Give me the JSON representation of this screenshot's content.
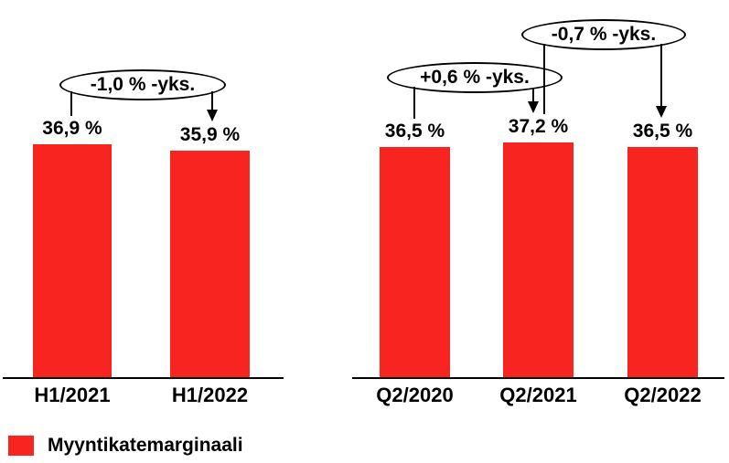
{
  "colors": {
    "bar": "#F82420",
    "axis": "#000000",
    "text": "#000000",
    "callout_border": "#000000",
    "callout_fill": "#ffffff",
    "background": "#ffffff"
  },
  "legend": {
    "label": "Myyntikatemarginaali",
    "position": "bottom-left"
  },
  "chart_data": [
    {
      "type": "bar",
      "title": "",
      "xlabel": "",
      "ylabel": "",
      "grid": false,
      "ylim": [
        0,
        40
      ],
      "unit": "%",
      "series_name": "Myyntikatemarginaali",
      "categories": [
        "H1/2021",
        "H1/2022"
      ],
      "values": [
        36.9,
        35.9
      ],
      "value_labels": [
        "36,9 %",
        "35,9 %"
      ],
      "annotations": [
        {
          "shape": "ellipse",
          "text": "-1,0 % -yks.",
          "from_category": "H1/2021",
          "to_category": "H1/2022"
        }
      ]
    },
    {
      "type": "bar",
      "title": "",
      "xlabel": "",
      "ylabel": "",
      "grid": false,
      "ylim": [
        0,
        40
      ],
      "unit": "%",
      "series_name": "Myyntikatemarginaali",
      "categories": [
        "Q2/2020",
        "Q2/2021",
        "Q2/2022"
      ],
      "values": [
        36.5,
        37.2,
        36.5
      ],
      "value_labels": [
        "36,5 %",
        "37,2 %",
        "36,5 %"
      ],
      "annotations": [
        {
          "shape": "ellipse",
          "text": "+0,6 % -yks.",
          "from_category": "Q2/2020",
          "to_category": "Q2/2021"
        },
        {
          "shape": "ellipse",
          "text": "-0,7 % -yks.",
          "from_category": "Q2/2021",
          "to_category": "Q2/2022"
        }
      ]
    }
  ]
}
